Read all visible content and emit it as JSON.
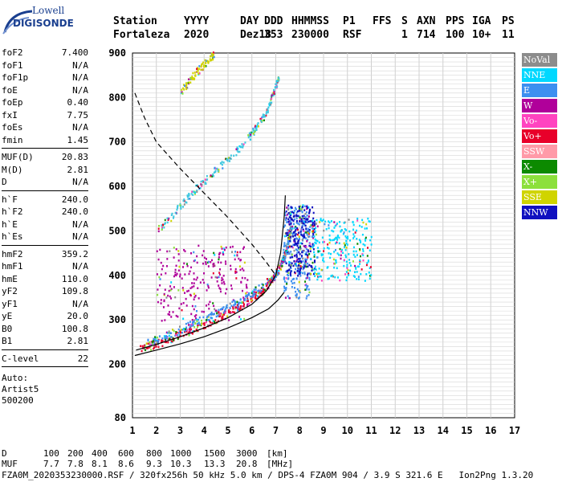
{
  "logo": {
    "line1": "Lowell",
    "line2": "DIGISONDE"
  },
  "header": {
    "labels": [
      "Station",
      "YYYY",
      "DAY",
      "DDD",
      "HHMMSS",
      "P1",
      "FFS",
      "S",
      "AXN",
      "PPS",
      "IGA",
      "PS"
    ],
    "values": [
      "Fortaleza",
      "2020",
      "Dez18",
      "353",
      "230000",
      "RSF",
      "",
      "1",
      "714",
      "100",
      "10+",
      "11"
    ]
  },
  "params": {
    "group1": [
      {
        "k": "foF2",
        "v": "7.400"
      },
      {
        "k": "foF1",
        "v": "N/A"
      },
      {
        "k": "foF1p",
        "v": "N/A"
      },
      {
        "k": "foE",
        "v": "N/A"
      },
      {
        "k": "foEp",
        "v": "0.40"
      },
      {
        "k": "fxI",
        "v": "7.75"
      },
      {
        "k": "foEs",
        "v": "N/A"
      },
      {
        "k": "fmin",
        "v": "1.45"
      }
    ],
    "group2": [
      {
        "k": "MUF(D)",
        "v": "20.83"
      },
      {
        "k": "M(D)",
        "v": "2.81"
      },
      {
        "k": "D",
        "v": "N/A"
      }
    ],
    "group3": [
      {
        "k": "h`F",
        "v": "240.0"
      },
      {
        "k": "h`F2",
        "v": "240.0"
      },
      {
        "k": "h`E",
        "v": "N/A"
      },
      {
        "k": "h`Es",
        "v": "N/A"
      }
    ],
    "group4": [
      {
        "k": "hmF2",
        "v": "359.2"
      },
      {
        "k": "hmF1",
        "v": "N/A"
      },
      {
        "k": "hmE",
        "v": "110.0"
      },
      {
        "k": "yF2",
        "v": "109.8"
      },
      {
        "k": "yF1",
        "v": "N/A"
      },
      {
        "k": "yE",
        "v": "20.0"
      },
      {
        "k": "B0",
        "v": "100.8"
      },
      {
        "k": "B1",
        "v": "2.81"
      }
    ],
    "group5": [
      {
        "k": "C-level",
        "v": "22"
      }
    ],
    "auto": [
      "Auto:",
      "Artist5",
      "500200"
    ]
  },
  "legend": [
    {
      "label": "NoVal",
      "color": "#8c8c8c"
    },
    {
      "label": "NNE",
      "color": "#00d8ff"
    },
    {
      "label": "E",
      "color": "#3c8ff0"
    },
    {
      "label": "W",
      "color": "#b0009a"
    },
    {
      "label": "Vo-",
      "color": "#ff44c0"
    },
    {
      "label": "Vo+",
      "color": "#e8002a"
    },
    {
      "label": "SSW",
      "color": "#ff9aa8"
    },
    {
      "label": "X-",
      "color": "#0c8a00"
    },
    {
      "label": "X+",
      "color": "#8ce03c"
    },
    {
      "label": "SSE",
      "color": "#d0d400"
    },
    {
      "label": "NNW",
      "color": "#1010c0"
    }
  ],
  "bottom": {
    "d_label": "D",
    "d_values": [
      "100",
      "200",
      "400",
      "600",
      "800",
      "1000",
      "1500",
      "3000",
      "[km]"
    ],
    "muf_label": "MUF",
    "muf_values": [
      "7.7",
      "7.8",
      "8.1",
      "8.6",
      "9.3",
      "10.3",
      "13.3",
      "20.8",
      "[MHz]"
    ],
    "footer": "FZA0M_2020353230000.RSF / 320fx256h 50 kHz 5.0 km / DPS-4 FZA0M 904 / 3.9 S 321.6 E   Ion2Png 1.3.20"
  },
  "chart_data": {
    "type": "scatter",
    "xlim": [
      1,
      17
    ],
    "ylim": [
      80,
      900
    ],
    "xticks": [
      1,
      2,
      3,
      4,
      5,
      6,
      7,
      8,
      9,
      10,
      11,
      12,
      13,
      14,
      15,
      16,
      17
    ],
    "yticks": [
      80,
      200,
      300,
      400,
      500,
      600,
      700,
      800,
      900
    ],
    "grid": true,
    "traces": [
      {
        "name": "O-trace",
        "color": "#e8002a",
        "x": [
          1.3,
          1.7,
          2.0,
          2.5,
          3.0,
          3.5,
          4.0,
          4.5,
          5.0,
          5.5,
          6.0,
          6.3,
          6.6,
          6.9,
          7.1,
          7.3,
          7.4
        ],
        "y": [
          240,
          243,
          248,
          257,
          268,
          280,
          292,
          305,
          318,
          332,
          350,
          362,
          378,
          398,
          415,
          440,
          460
        ]
      },
      {
        "name": "X-trace",
        "color": "#3c8ff0",
        "x": [
          1.6,
          2.0,
          2.5,
          3.0,
          3.5,
          4.0,
          4.5,
          5.0,
          5.5,
          6.0,
          6.5,
          6.9,
          7.2,
          7.4,
          7.5,
          7.6
        ],
        "y": [
          250,
          258,
          268,
          280,
          292,
          305,
          318,
          332,
          348,
          362,
          380,
          400,
          425,
          455,
          480,
          510
        ]
      },
      {
        "name": "F2-second-hop",
        "color": "#40c8e0",
        "x": [
          2.0,
          2.5,
          3.0,
          3.5,
          4.0,
          4.5,
          5.0,
          5.5,
          6.0,
          6.3,
          6.6,
          6.8,
          7.0,
          7.1
        ],
        "y": [
          505,
          525,
          560,
          590,
          615,
          640,
          662,
          690,
          722,
          745,
          770,
          800,
          830,
          850
        ]
      },
      {
        "name": "F2-third-hop",
        "color": "#d0d400",
        "x": [
          3.0,
          3.3,
          3.6,
          3.9,
          4.2,
          4.4
        ],
        "y": [
          815,
          835,
          855,
          872,
          888,
          900
        ]
      }
    ],
    "clouds": [
      {
        "name": "W-spread",
        "color": "#b0009a",
        "xrange": [
          2.0,
          5.8
        ],
        "yrange": [
          300,
          470
        ]
      },
      {
        "name": "E-spread",
        "color": "#3c8ff0",
        "xrange": [
          7.3,
          8.4
        ],
        "yrange": [
          350,
          560
        ]
      },
      {
        "name": "NNW-spread",
        "color": "#1010c0",
        "xrange": [
          7.4,
          8.6
        ],
        "yrange": [
          400,
          560
        ]
      },
      {
        "name": "NNE-spread",
        "color": "#00d8ff",
        "xrange": [
          8.5,
          11.0
        ],
        "yrange": [
          390,
          530
        ]
      }
    ],
    "profile_solid_upper": {
      "x": [
        1.15,
        2.0,
        3.0,
        4.0,
        5.0,
        6.0,
        6.6,
        7.0,
        7.2,
        7.35,
        7.4
      ],
      "y": [
        232,
        245,
        262,
        282,
        305,
        335,
        365,
        400,
        450,
        530,
        580
      ]
    },
    "profile_solid_lower": {
      "x": [
        1.1,
        2.0,
        3.0,
        4.0,
        5.0,
        6.0,
        6.7,
        7.1,
        7.35
      ],
      "y": [
        220,
        232,
        246,
        262,
        282,
        305,
        325,
        345,
        362
      ]
    },
    "profile_dashed": {
      "x": [
        1.1,
        1.5,
        2.0,
        3.0,
        4.0,
        5.0,
        6.0,
        6.6,
        7.0
      ],
      "y": [
        810,
        755,
        700,
        640,
        585,
        530,
        470,
        430,
        400
      ]
    }
  }
}
